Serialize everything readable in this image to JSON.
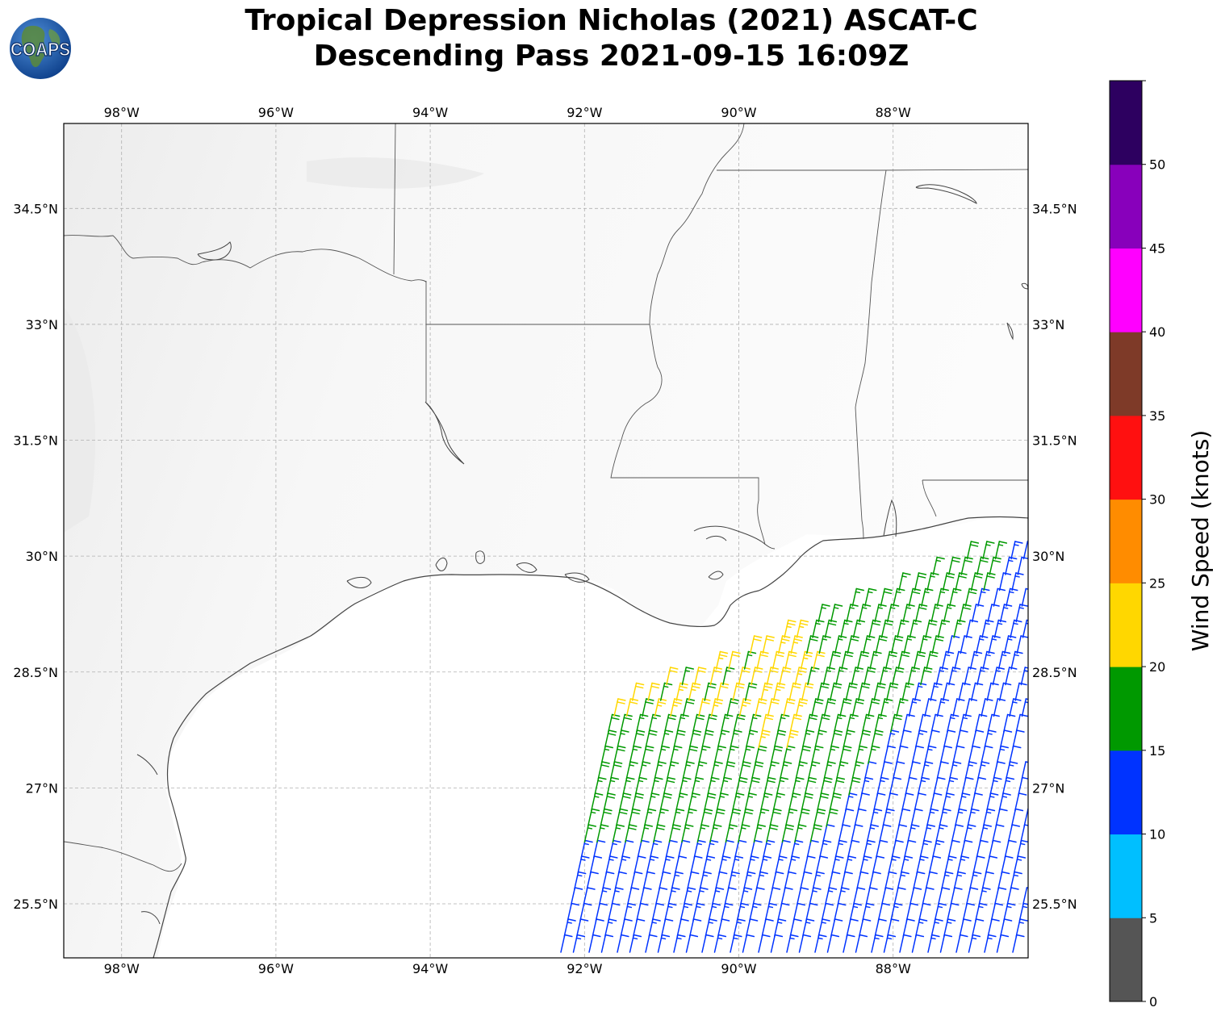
{
  "title": {
    "line1": "Tropical Depression Nicholas (2021) ASCAT-C",
    "line2": "Descending Pass 2021-09-15 16:09Z"
  },
  "logo": {
    "text": "COAPS",
    "icon": "globe-logo"
  },
  "map": {
    "lon_range": [
      -98.75,
      -86.25
    ],
    "lat_range": [
      24.8,
      35.6
    ],
    "lon_ticks": [
      {
        "value": -98,
        "label": "98°W"
      },
      {
        "value": -96,
        "label": "96°W"
      },
      {
        "value": -94,
        "label": "94°W"
      },
      {
        "value": -92,
        "label": "92°W"
      },
      {
        "value": -90,
        "label": "90°W"
      },
      {
        "value": -88,
        "label": "88°W"
      }
    ],
    "lat_ticks": [
      {
        "value": 34.5,
        "label": "34.5°N"
      },
      {
        "value": 33,
        "label": "33°N"
      },
      {
        "value": 31.5,
        "label": "31.5°N"
      },
      {
        "value": 30,
        "label": "30°N"
      },
      {
        "value": 28.5,
        "label": "28.5°N"
      },
      {
        "value": 27,
        "label": "27°N"
      },
      {
        "value": 25.5,
        "label": "25.5°N"
      }
    ],
    "gridlines": true
  },
  "colorbar": {
    "label": "Wind Speed (knots)",
    "ticks": [
      "0",
      "5",
      "10",
      "15",
      "20",
      "25",
      "30",
      "35",
      "40",
      "45",
      "50"
    ],
    "colors": [
      "#555555",
      "#00bfff",
      "#0033ff",
      "#009900",
      "#ffd700",
      "#ff8c00",
      "#ff1010",
      "#7e3a28",
      "#ff00ff",
      "#8800bb",
      "#2d0060"
    ]
  }
}
